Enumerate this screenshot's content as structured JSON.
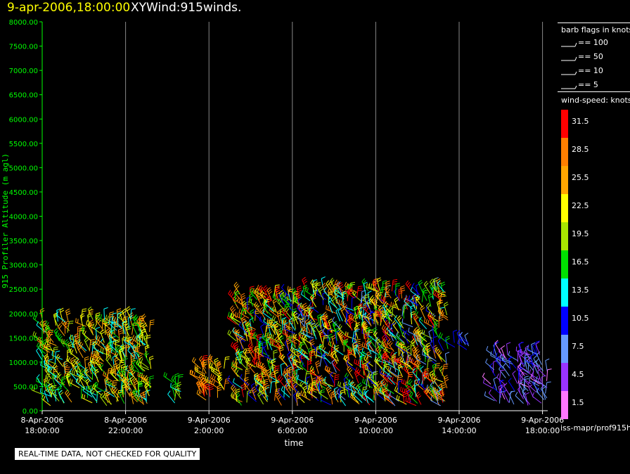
{
  "header": {
    "date_label": "9-apr-2006,18:00:00",
    "title": "XYWind:915winds."
  },
  "footer": {
    "qc_note": "REAL-TIME DATA, NOT CHECKED FOR QUALITY",
    "source_path": "iss-mapr/prof915h"
  },
  "barb_legend": {
    "title": "barb flags in knots",
    "items": [
      {
        "label": "== 100"
      },
      {
        "label": "== 50"
      },
      {
        "label": "== 10"
      },
      {
        "label": "== 5"
      }
    ]
  },
  "speed_legend": {
    "title": "wind-speed: knots",
    "bins": [
      {
        "label": "31.5",
        "color": "#ff0000"
      },
      {
        "label": "28.5",
        "color": "#ff7f00"
      },
      {
        "label": "25.5",
        "color": "#ffa500"
      },
      {
        "label": "22.5",
        "color": "#ffff00"
      },
      {
        "label": "19.5",
        "color": "#a8e600"
      },
      {
        "label": "16.5",
        "color": "#00e000"
      },
      {
        "label": "13.5",
        "color": "#00ffff"
      },
      {
        "label": "10.5",
        "color": "#0000ff"
      },
      {
        "label": "7.5",
        "color": "#6699ff"
      },
      {
        "label": "4.5",
        "color": "#9933ff"
      },
      {
        "label": "1.5",
        "color": "#ff77ff"
      }
    ]
  },
  "chart_data": {
    "type": "scatter",
    "description_type": "wind-barb time-height",
    "xlabel": "time",
    "ylabel": "915 Profiler Altitude (m agl)",
    "ylim": [
      0,
      8000
    ],
    "yticks": [
      "0.00",
      "500.00",
      "1000.00",
      "1500.00",
      "2000.00",
      "2500.00",
      "3000.00",
      "3500.00",
      "4000.00",
      "4500.00",
      "5000.00",
      "5500.00",
      "6000.00",
      "6500.00",
      "7000.00",
      "7500.00",
      "8000.00"
    ],
    "xticks": [
      {
        "date": "8-Apr-2006",
        "time": "18:00:00"
      },
      {
        "date": "8-Apr-2006",
        "time": "22:00:00"
      },
      {
        "date": "9-Apr-2006",
        "time": "2:00:00"
      },
      {
        "date": "9-Apr-2006",
        "time": "6:00:00"
      },
      {
        "date": "9-Apr-2006",
        "time": "10:00:00"
      },
      {
        "date": "9-Apr-2006",
        "time": "14:00:00"
      },
      {
        "date": "9-Apr-2006",
        "time": "18:00:00"
      }
    ],
    "clusters": [
      {
        "t_start": "8-Apr-2006 18:00",
        "t_end": "8-Apr-2006 23:15",
        "alt_min": 100,
        "alt_max": 1900,
        "speed_range_kt": [
          12,
          28
        ]
      },
      {
        "t_start": "9-Apr-2006 0:15",
        "t_end": "9-Apr-2006 0:45",
        "alt_min": 150,
        "alt_max": 700,
        "speed_range_kt": [
          14,
          20
        ]
      },
      {
        "t_start": "9-Apr-2006 1:30",
        "t_end": "9-Apr-2006 2:45",
        "alt_min": 150,
        "alt_max": 1000,
        "speed_range_kt": [
          22,
          31
        ]
      },
      {
        "t_start": "9-Apr-2006 3:15",
        "t_end": "9-Apr-2006 6:30",
        "alt_min": 100,
        "alt_max": 2400,
        "speed_range_kt": [
          10,
          33
        ]
      },
      {
        "t_start": "9-Apr-2006 6:30",
        "t_end": "9-Apr-2006 13:30",
        "alt_min": 100,
        "alt_max": 2500,
        "speed_range_kt": [
          7,
          33
        ]
      },
      {
        "t_start": "9-Apr-2006 13:45",
        "t_end": "9-Apr-2006 14:30",
        "alt_min": 1250,
        "alt_max": 1400,
        "speed_range_kt": [
          7,
          12
        ]
      },
      {
        "t_start": "9-Apr-2006 15:30",
        "t_end": "9-Apr-2006 18:15",
        "alt_min": 100,
        "alt_max": 1200,
        "speed_range_kt": [
          2,
          11
        ]
      }
    ]
  }
}
